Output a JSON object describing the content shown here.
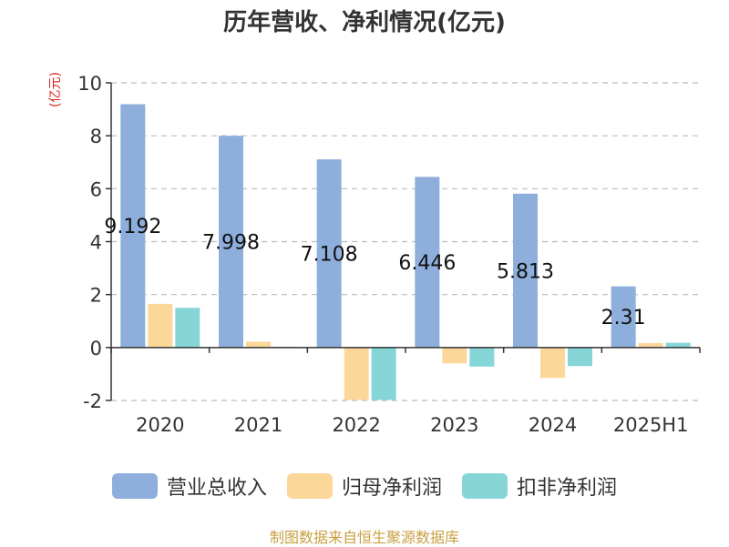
{
  "chart_data": {
    "type": "bar",
    "title": "历年营收、净利情况(亿元)",
    "ylabel": "(亿元)",
    "categories": [
      "2020",
      "2021",
      "2022",
      "2023",
      "2024",
      "2025H1"
    ],
    "ylim": [
      -2,
      10
    ],
    "yticks": [
      -2,
      0,
      2,
      4,
      6,
      8,
      10
    ],
    "grid": true,
    "legend_position": "bottom",
    "series": [
      {
        "name": "营业总收入",
        "color": "#8eaedb",
        "values": [
          9.192,
          7.998,
          7.108,
          6.446,
          5.813,
          2.31
        ],
        "labels": [
          "9.192",
          "7.998",
          "7.108",
          "6.446",
          "5.813",
          "2.31"
        ]
      },
      {
        "name": "归母净利润",
        "color": "#fcd79a",
        "values": [
          1.65,
          0.22,
          -1.98,
          -0.6,
          -1.15,
          0.17
        ]
      },
      {
        "name": "扣非净利润",
        "color": "#86d6d8",
        "values": [
          1.5,
          0.03,
          -1.98,
          -0.72,
          -0.7,
          0.18
        ]
      }
    ]
  },
  "source_text": "制图数据来自恒生聚源数据库"
}
